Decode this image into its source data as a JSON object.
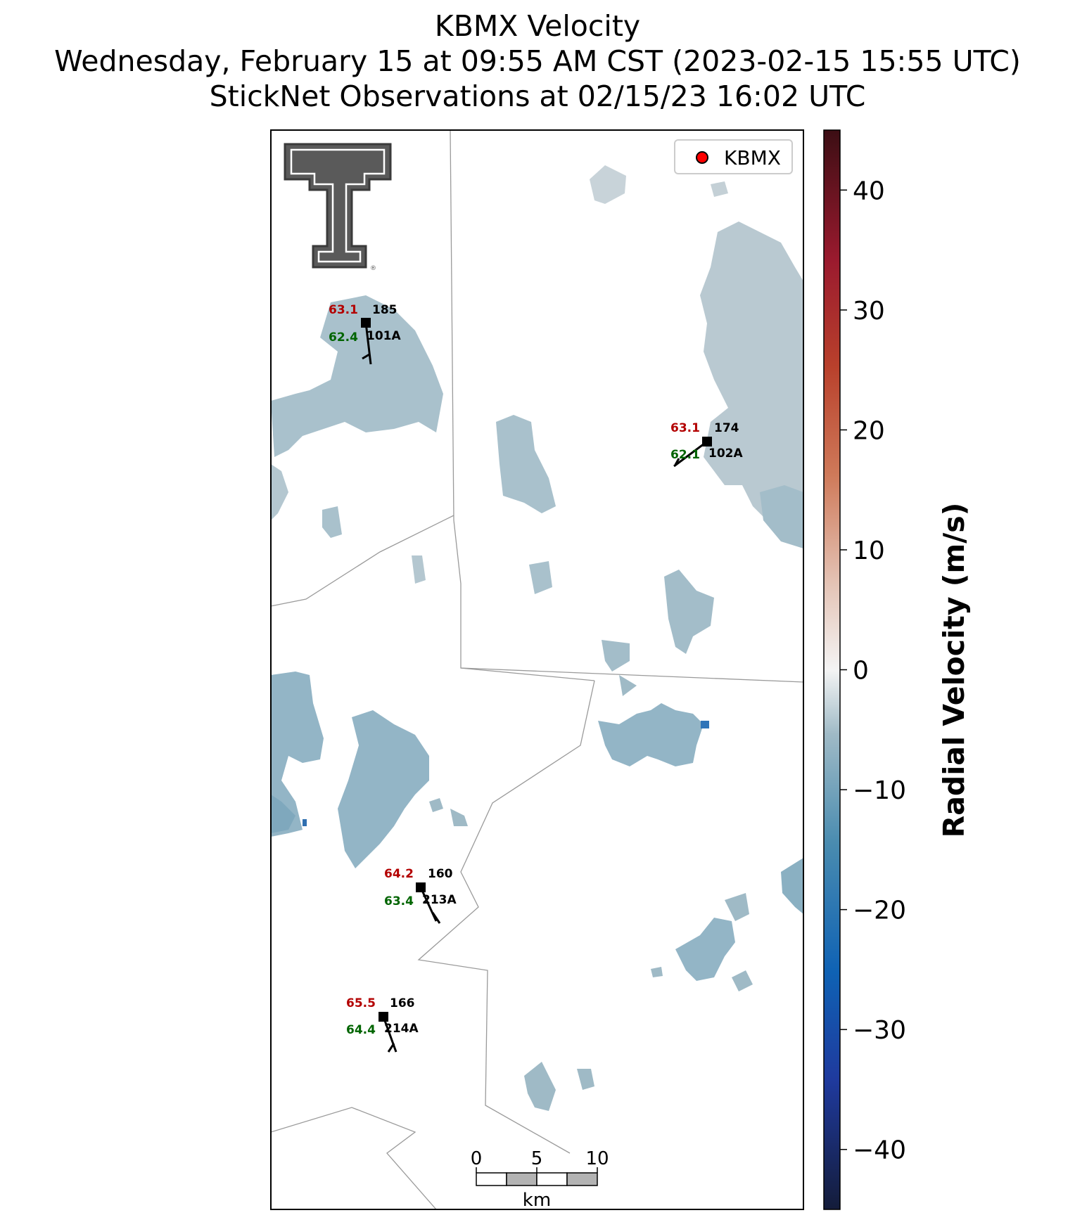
{
  "header": {
    "title": "KBMX Velocity",
    "subtitle": "Wednesday, February 15 at 09:55 AM CST (2023-02-15 15:55 UTC)",
    "obs_line": "StickNet Observations at 02/15/23 16:02 UTC"
  },
  "legend": {
    "label": "KBMX",
    "marker_color": "#ff0000"
  },
  "logo": {
    "text": "Texas Tech Double T"
  },
  "stations": [
    {
      "id": "101A",
      "temp": "63.1",
      "dewpoint": "62.4",
      "wind_dir": "185"
    },
    {
      "id": "102A",
      "temp": "63.1",
      "dewpoint": "62.1",
      "wind_dir": "174"
    },
    {
      "id": "213A",
      "temp": "64.2",
      "dewpoint": "63.4",
      "wind_dir": "160"
    },
    {
      "id": "214A",
      "temp": "65.5",
      "dewpoint": "64.4",
      "wind_dir": "166"
    }
  ],
  "colorbar": {
    "label": "Radial Velocity (m/s)",
    "min": -45,
    "max": 45,
    "ticks": [
      "40",
      "30",
      "20",
      "10",
      "0",
      "−10",
      "−20",
      "−30",
      "−40"
    ],
    "tick_values": [
      40,
      30,
      20,
      10,
      0,
      -10,
      -20,
      -30,
      -40
    ]
  },
  "scalebar": {
    "labels": [
      "0",
      "5",
      "10"
    ],
    "unit": "km"
  },
  "colors": {
    "temp": "#b30000",
    "dewpoint": "#006400",
    "echo_light": "#c4d0d6",
    "echo_medium": "#9fbac6",
    "echo_dark": "#8ab0c2",
    "county_line": "#9a9a9a"
  }
}
